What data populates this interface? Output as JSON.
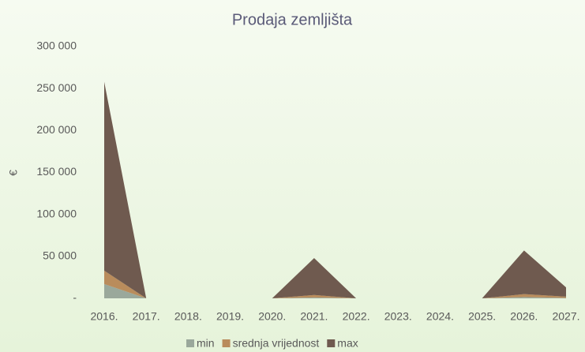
{
  "chart_data": {
    "type": "area",
    "title": "Prodaja zemljišta",
    "y_label": "€",
    "categories": [
      "2016.",
      "2017.",
      "2018.",
      "2019.",
      "2020.",
      "2021.",
      "2022.",
      "2023.",
      "2024.",
      "2025.",
      "2026.",
      "2027."
    ],
    "series": [
      {
        "name": "min",
        "color": "#9aa89b",
        "values": [
          17000,
          0,
          0,
          0,
          0,
          1000,
          0,
          0,
          0,
          0,
          1500,
          500
        ]
      },
      {
        "name": "srednja vrijednost",
        "color": "#b98c5c",
        "values": [
          16000,
          0,
          0,
          0,
          0,
          3000,
          0,
          0,
          0,
          0,
          3500,
          1500
        ]
      },
      {
        "name": "max",
        "color": "#6f5a4f",
        "values": [
          225000,
          0,
          0,
          0,
          0,
          44000,
          0,
          0,
          0,
          0,
          52000,
          11000
        ]
      }
    ],
    "stacked": true,
    "ylim": [
      0,
      300000
    ],
    "yticks": [
      {
        "value": 0,
        "label": "-"
      },
      {
        "value": 50000,
        "label": "50 000"
      },
      {
        "value": 100000,
        "label": "100 000"
      },
      {
        "value": 150000,
        "label": "150 000"
      },
      {
        "value": 200000,
        "label": "200 000"
      },
      {
        "value": 250000,
        "label": "250 000"
      },
      {
        "value": 300000,
        "label": "300 000"
      }
    ],
    "legend": "bottom"
  }
}
